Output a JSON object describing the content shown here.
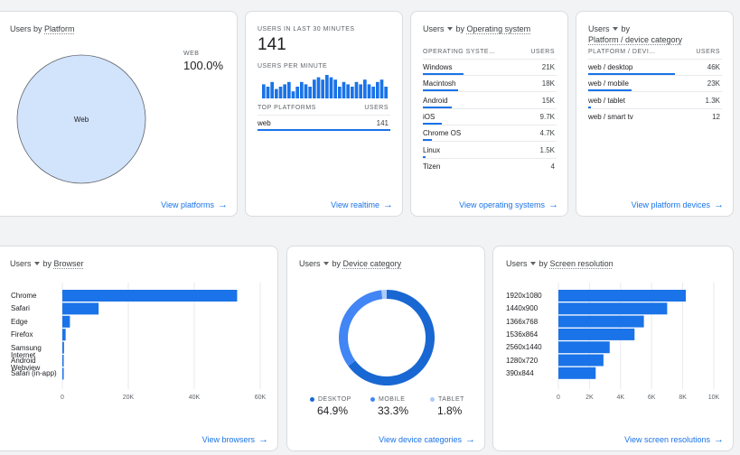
{
  "platform": {
    "title_prefix": "Users by ",
    "title_dim": "Platform",
    "legend_label": "WEB",
    "legend_value": "100.0%",
    "pie_label": "Web",
    "link": "View platforms",
    "color": "#d2e3fc"
  },
  "realtime": {
    "users_caption": "USERS IN LAST 30 MINUTES",
    "users_value": "141",
    "per_minute_caption": "USERS PER MINUTE",
    "minute_values": [
      6,
      5,
      7,
      4,
      5,
      6,
      7,
      3,
      5,
      7,
      6,
      5,
      8,
      9,
      8,
      10,
      9,
      8,
      5,
      7,
      6,
      5,
      7,
      6,
      8,
      6,
      5,
      7,
      8,
      5
    ],
    "top_caption": "TOP PLATFORMS",
    "users_col": "USERS",
    "top_rows": [
      {
        "label": "web",
        "value": "141",
        "frac": 1.0
      }
    ],
    "link": "View realtime"
  },
  "os": {
    "title_metric": "Users",
    "title_by": "by",
    "title_dim": "Operating system",
    "col_dim": "OPERATING SYSTE…",
    "col_users": "USERS",
    "rows": [
      {
        "label": "Windows",
        "value": "21K",
        "frac": 1.0
      },
      {
        "label": "Macintosh",
        "value": "18K",
        "frac": 0.86
      },
      {
        "label": "Android",
        "value": "15K",
        "frac": 0.71
      },
      {
        "label": "iOS",
        "value": "9.7K",
        "frac": 0.46
      },
      {
        "label": "Chrome OS",
        "value": "4.7K",
        "frac": 0.22
      },
      {
        "label": "Linux",
        "value": "1.5K",
        "frac": 0.07
      },
      {
        "label": "Tizen",
        "value": "4",
        "frac": 0
      }
    ],
    "link": "View operating systems"
  },
  "devices": {
    "title_metric": "Users",
    "title_by": "by",
    "title_dim": "Platform / device category",
    "col_dim": "PLATFORM / DEVI…",
    "col_users": "USERS",
    "rows": [
      {
        "label": "web / desktop",
        "value": "46K",
        "frac": 1.0
      },
      {
        "label": "web / mobile",
        "value": "23K",
        "frac": 0.5
      },
      {
        "label": "web / tablet",
        "value": "1.3K",
        "frac": 0.03
      },
      {
        "label": "web / smart tv",
        "value": "12",
        "frac": 0
      }
    ],
    "link": "View platform devices"
  },
  "browser": {
    "title_metric": "Users",
    "title_by": "by",
    "title_dim": "Browser",
    "link": "View browsers"
  },
  "category": {
    "title_metric": "Users",
    "title_by": "by",
    "title_dim": "Device category",
    "legend": [
      {
        "label": "DESKTOP",
        "value": "64.9%",
        "color": "#1967d2"
      },
      {
        "label": "MOBILE",
        "value": "33.3%",
        "color": "#4285f4"
      },
      {
        "label": "TABLET",
        "value": "1.8%",
        "color": "#aecbfa"
      }
    ],
    "link": "View device categories"
  },
  "resolution": {
    "title_metric": "Users",
    "title_by": "by",
    "title_dim": "Screen resolution",
    "link": "View screen resolutions"
  },
  "chart_data": [
    {
      "type": "pie",
      "title": "Users by Platform",
      "categories": [
        "Web"
      ],
      "values": [
        100.0
      ]
    },
    {
      "type": "bar",
      "title": "Users by Browser",
      "orientation": "horizontal",
      "categories": [
        "Chrome",
        "Safari",
        "Edge",
        "Firefox",
        "Samsung Internet",
        "Android Webview",
        "Safari (in-app)"
      ],
      "values": [
        53000,
        11000,
        2300,
        1000,
        500,
        350,
        300
      ],
      "xlim": [
        0,
        60000
      ],
      "xticks": [
        "0",
        "20K",
        "40K",
        "60K"
      ],
      "grid": true
    },
    {
      "type": "pie",
      "title": "Users by Device category",
      "categories": [
        "DESKTOP",
        "MOBILE",
        "TABLET"
      ],
      "values": [
        64.9,
        33.3,
        1.8
      ]
    },
    {
      "type": "bar",
      "title": "Users by Screen resolution",
      "orientation": "horizontal",
      "categories": [
        "1920x1080",
        "1440x900",
        "1366x768",
        "1536x864",
        "2560x1440",
        "1280x720",
        "390x844"
      ],
      "values": [
        8200,
        7000,
        5500,
        4900,
        3300,
        2900,
        2400
      ],
      "xlim": [
        0,
        10000
      ],
      "xticks": [
        "0",
        "2K",
        "4K",
        "6K",
        "8K",
        "10K"
      ],
      "grid": true
    }
  ]
}
